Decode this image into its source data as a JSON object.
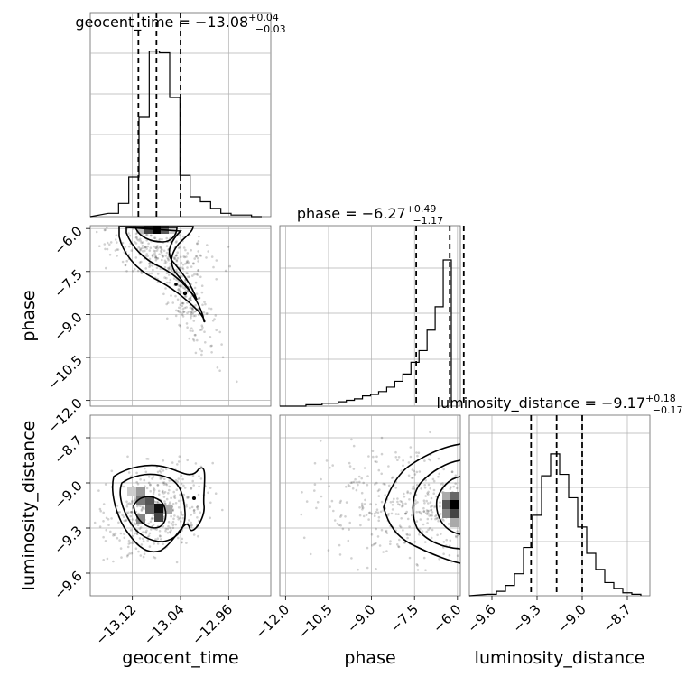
{
  "chart_data": {
    "type": "corner",
    "parameters": [
      {
        "name": "geocent_time",
        "median": -13.08,
        "plus": "+0.04",
        "minus": "−0.03",
        "title_main": "geocent_time = −13.08",
        "range": [
          -13.19,
          -12.89
        ],
        "ticks": [
          -13.12,
          -13.04,
          -12.96
        ],
        "tick_labels": [
          "−13.12",
          "−13.04",
          "−12.96"
        ],
        "quantiles": [
          -13.11,
          -13.08,
          -13.04
        ],
        "hist": [
          0.02,
          0.08,
          0.24,
          0.6,
          1.0,
          0.99,
          0.72,
          0.25,
          0.12,
          0.09,
          0.05,
          0.02,
          0.01,
          0.01,
          0.0
        ]
      },
      {
        "name": "phase",
        "median": -6.27,
        "plus": "+0.49",
        "minus": "−1.17",
        "title_main": "phase = −6.27",
        "range": [
          -12.2,
          -5.9
        ],
        "ticks": [
          -12.0,
          -10.5,
          -9.0,
          -7.5,
          -6.0
        ],
        "tick_labels": [
          "−12.0",
          "−10.5",
          "−9.0",
          "−7.5",
          "−6.0"
        ],
        "quantiles": [
          -7.44,
          -6.27,
          -5.78
        ],
        "hist": [
          0.0,
          0.01,
          0.01,
          0.02,
          0.02,
          0.03,
          0.04,
          0.05,
          0.07,
          0.08,
          0.1,
          0.13,
          0.17,
          0.22,
          0.3,
          0.38,
          0.52,
          0.68,
          1.0
        ]
      },
      {
        "name": "luminosity_distance",
        "median": -9.17,
        "plus": "+0.18",
        "minus": "−0.17",
        "title_main": "luminosity_distance = −9.17",
        "range": [
          -9.75,
          -8.55
        ],
        "ticks": [
          -9.6,
          -9.3,
          -9.0,
          -8.7
        ],
        "tick_labels": [
          "−9.6",
          "−9.3",
          "−9.0",
          "−8.7"
        ],
        "quantiles": [
          -9.34,
          -9.17,
          -9.0
        ],
        "hist": [
          0.01,
          0.03,
          0.07,
          0.15,
          0.33,
          0.55,
          0.82,
          0.97,
          0.83,
          0.67,
          0.47,
          0.29,
          0.18,
          0.09,
          0.05,
          0.02,
          0.01
        ]
      }
    ],
    "pairs": [
      {
        "x": "geocent_time",
        "y": "phase",
        "y_ticks": [
          -6.0,
          -7.5,
          -9.0,
          -10.5,
          -12.0
        ],
        "y_tick_labels": [
          "−6.0",
          "−7.5",
          "−9.0",
          "−10.5",
          "−12.0"
        ]
      },
      {
        "x": "geocent_time",
        "y": "luminosity_distance",
        "y_ticks": [
          -8.7,
          -9.0,
          -9.3,
          -9.6
        ],
        "y_tick_labels": [
          "−8.7",
          "−9.0",
          "−9.3",
          "−9.6"
        ]
      },
      {
        "x": "phase",
        "y": "luminosity_distance"
      }
    ],
    "grid": true,
    "colors": {
      "hist": "#000000",
      "samples": "#000000",
      "grid": "#b0b0b0"
    }
  }
}
